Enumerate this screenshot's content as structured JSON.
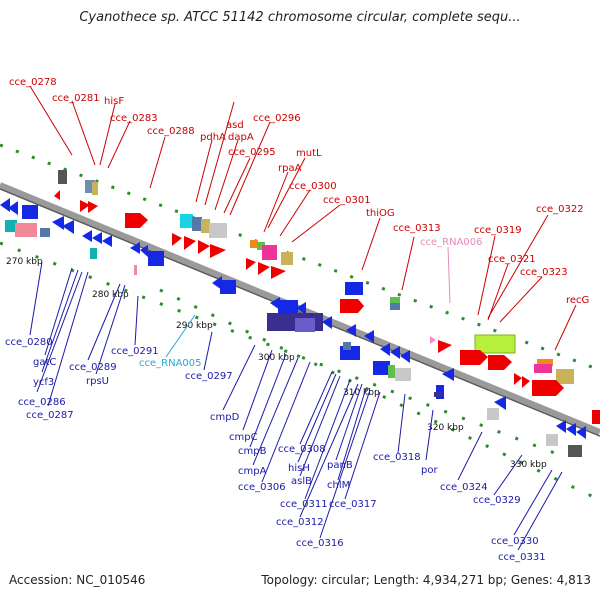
{
  "title": "Cyanothece sp. ATCC 51142 chromosome circular, complete sequ...",
  "footer": {
    "accession": "Accession: NC_010546",
    "topology": "Topology: circular; Length: 4,934,271 bp; Genes: 4,813"
  },
  "colors": {
    "upper_label": "#cc0000",
    "lower_label": "#1a1aa8",
    "rna_label": "#22aacc",
    "rna_pink_label": "#e68ab8",
    "backbone": "#8c8c8c",
    "dots": "#2e8b2e"
  },
  "kbp_ticks": [
    "270 kbp",
    "280 kbp",
    "290 kbp",
    "300 kbp",
    "310 kbp",
    "320 kbp",
    "330 kbp"
  ],
  "upper_labels": [
    "cce_0278",
    "cce_0281",
    "hisF",
    "cce_0283",
    "cce_0288",
    "asd",
    "pdhA",
    "dapA",
    "cce_0296",
    "cce_0295",
    "mutL",
    "rpaA",
    "cce_0300",
    "cce_0301",
    "thiOG",
    "cce_0313",
    "cce_RNA006",
    "cce_0319",
    "cce_0322",
    "cce_0321",
    "cce_0323",
    "recG"
  ],
  "lower_labels": [
    "cce_0280",
    "gatC",
    "ycf3",
    "cce_0286",
    "cce_0287",
    "cce_0289",
    "rpsU",
    "cce_0291",
    "cce_RNA005",
    "cce_0297",
    "cmpD",
    "cmpC",
    "cmpB",
    "cmpA",
    "cce_0306",
    "cce_0308",
    "hisH",
    "aslB",
    "cce_0311",
    "cce_0312",
    "panB",
    "chlM",
    "cce_0317",
    "cce_0316",
    "cce_0318",
    "por",
    "cce_0324",
    "cce_0329",
    "cce_0330",
    "cce_0331"
  ]
}
